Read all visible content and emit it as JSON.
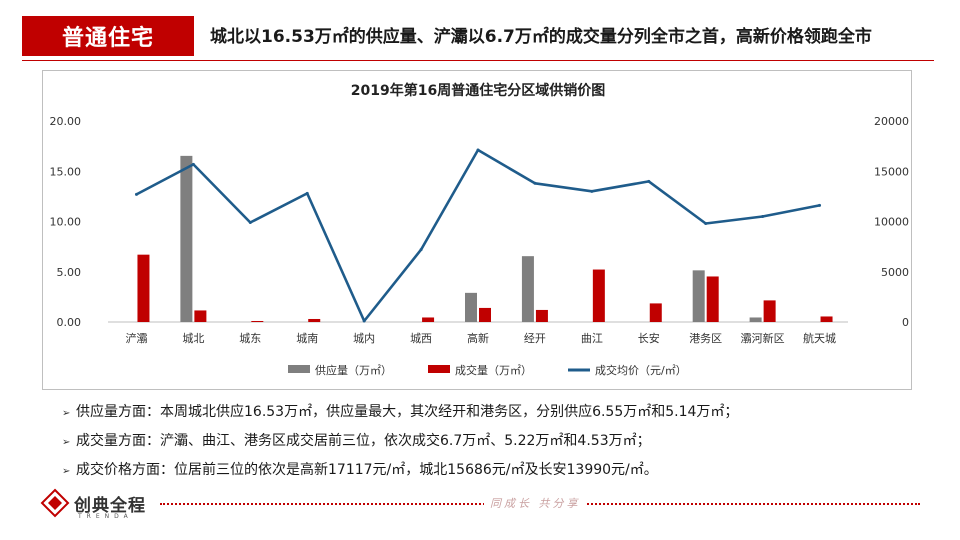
{
  "header": {
    "tag": "普通住宅",
    "title": "城北以16.53万㎡的供应量、浐灞以6.7万㎡的成交量分列全市之首，高新价格领跑全市"
  },
  "chart_data": {
    "type": "bar",
    "title": "2019年第16周普通住宅分区域供销价图",
    "categories": [
      "浐灞",
      "城北",
      "城东",
      "城南",
      "城内",
      "城西",
      "高新",
      "经开",
      "曲江",
      "长安",
      "港务区",
      "灞河新区",
      "航天城"
    ],
    "series": [
      {
        "name": "供应量（万㎡）",
        "type": "bar",
        "axis": "left",
        "color": "#7f7f7f",
        "values": [
          0,
          16.53,
          0,
          0,
          0,
          0,
          2.9,
          6.55,
          0,
          0,
          5.14,
          0.45,
          0
        ]
      },
      {
        "name": "成交量（万㎡）",
        "type": "bar",
        "axis": "left",
        "color": "#c00000",
        "values": [
          6.7,
          1.15,
          0.1,
          0.3,
          0,
          0.45,
          1.4,
          1.2,
          5.22,
          1.85,
          4.53,
          2.15,
          0.55
        ]
      },
      {
        "name": "成交均价（元/㎡）",
        "type": "line",
        "axis": "right",
        "color": "#1f5c8b",
        "values": [
          12700,
          15686,
          9900,
          12800,
          100,
          7200,
          17117,
          13800,
          13000,
          13990,
          9800,
          10500,
          11600
        ]
      }
    ],
    "y_left": {
      "min": 0,
      "max": 20,
      "ticks": [
        "0.00",
        "5.00",
        "10.00",
        "15.00",
        "20.00"
      ]
    },
    "y_right": {
      "min": 0,
      "max": 20000,
      "ticks": [
        "0",
        "5000",
        "10000",
        "15000",
        "20000"
      ]
    },
    "legend": "bottom",
    "grid": false
  },
  "bullets": [
    "供应量方面：本周城北供应16.53万㎡，供应量最大，其次经开和港务区，分别供应6.55万㎡和5.14万㎡；",
    "成交量方面：浐灞、曲江、港务区成交居前三位，依次成交6.7万㎡、5.22万㎡和4.53万㎡；",
    "成交价格方面：位居前三位的依次是高新17117元/㎡，城北15686元/㎡及长安13990元/㎡。"
  ],
  "bullet_arrow": "➢",
  "footer": {
    "logo_cn": "创典全程",
    "logo_en": "TRENDA",
    "slogan": "同成长 共分享"
  },
  "colors": {
    "accent": "#c00000",
    "line": "#1f5c8b",
    "supply": "#7f7f7f"
  }
}
